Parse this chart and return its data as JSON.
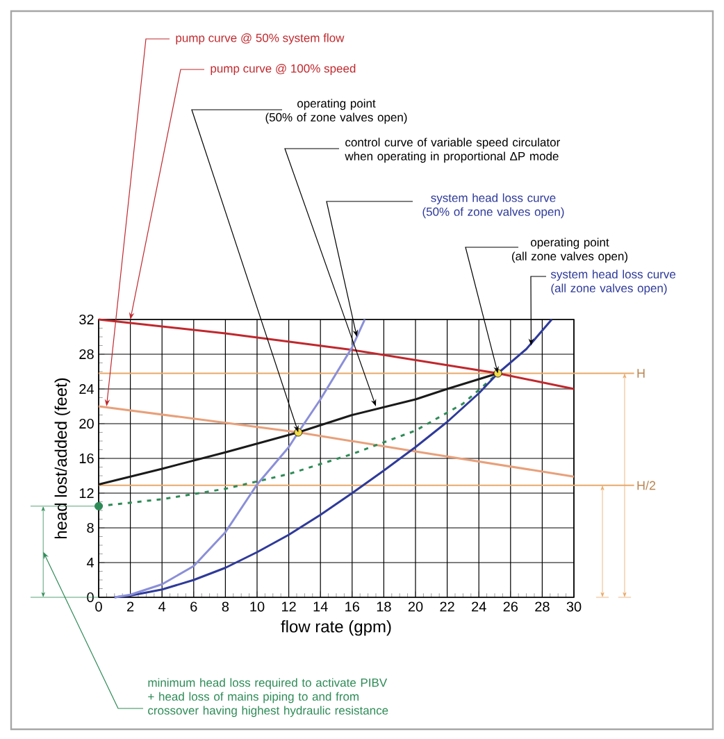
{
  "chart_data": {
    "type": "line",
    "xlabel": "flow rate (gpm)",
    "ylabel": "head lost/added (feet)",
    "xlim": [
      0,
      30
    ],
    "ylim": [
      0,
      32
    ],
    "xticks": [
      0,
      2,
      4,
      6,
      8,
      10,
      12,
      14,
      16,
      18,
      20,
      22,
      24,
      26,
      28,
      30
    ],
    "yticks": [
      0,
      4,
      8,
      12,
      16,
      20,
      24,
      28,
      32
    ],
    "grid": true,
    "series": [
      {
        "color": "#c0282d",
        "x": [
          0,
          8,
          16,
          25.2,
          30
        ],
        "values": [
          32,
          30.4,
          28.5,
          25.8,
          24
        ]
      },
      {
        "color": "#e8a07a",
        "x": [
          0,
          12.6,
          20,
          30
        ],
        "values": [
          22,
          19,
          16.8,
          13.9
        ]
      },
      {
        "color": "#1a1a1a",
        "x": [
          0,
          4,
          8,
          12.6,
          16,
          20,
          22,
          25.2
        ],
        "values": [
          13,
          14.8,
          16.7,
          19,
          21,
          22.8,
          24,
          25.8
        ]
      },
      {
        "color": "#2e8b57",
        "line_style": "dashed",
        "x": [
          0,
          4,
          8,
          12,
          16,
          20,
          23,
          25.2
        ],
        "values": [
          10.5,
          11.3,
          12.5,
          14.2,
          16.5,
          19.2,
          22.3,
          25.8
        ]
      },
      {
        "color": "#2e3a9a",
        "x": [
          1,
          2,
          4,
          6,
          8,
          10,
          12,
          14,
          16,
          18,
          20,
          22,
          24,
          25.2,
          27,
          28.6
        ],
        "values": [
          0,
          0.2,
          0.9,
          2,
          3.4,
          5.2,
          7.2,
          9.5,
          12,
          14.6,
          17.3,
          20.2,
          23.5,
          25.8,
          28.6,
          32
        ]
      },
      {
        "color": "#8a8fd8",
        "x": [
          1,
          2,
          4,
          6,
          8,
          10,
          12,
          12.6,
          14,
          16,
          16.8
        ],
        "values": [
          0,
          0.3,
          1.5,
          3.6,
          7.5,
          13,
          17.3,
          19,
          22.8,
          28.8,
          32
        ]
      },
      {
        "type": "scatter",
        "marker": "circle",
        "color": "#2e8b57",
        "x": [
          0
        ],
        "values": [
          10.5
        ]
      },
      {
        "type": "scatter",
        "marker": "circle",
        "color": "#f2dc4a",
        "x": [
          12.6,
          25.2
        ],
        "values": [
          19,
          25.8
        ]
      }
    ],
    "ref_lines": [
      {
        "axis": "y",
        "value": 25.8,
        "label": "H",
        "color": "#e8a868"
      },
      {
        "axis": "y",
        "value": 12.9,
        "label": "H/2",
        "color": "#e8a868"
      }
    ],
    "annotations": [
      {
        "text": "pump curve @ 50% system flow",
        "x": 0.5,
        "y": 22
      },
      {
        "text": "pump curve @ 100% speed",
        "x": 2,
        "y": 32
      },
      {
        "text": "operating point (50% of zone valves open)",
        "x": 12.6,
        "y": 19
      },
      {
        "text": "control curve of variable speed circulator when operating in proportional ΔP mode",
        "x": 17.5,
        "y": 22
      },
      {
        "text": "system head loss curve (50% of zone valves open)",
        "x": 16.3,
        "y": 30
      },
      {
        "text": "operating point (all zone valves open)",
        "x": 25.2,
        "y": 25.8
      },
      {
        "text": "system head loss curve (all zone valves open)",
        "x": 27.3,
        "y": 29
      },
      "minimum head loss required to activate PIBV + head loss of mains piping to and from crossover having highest hydraulic resistance"
    ]
  }
}
